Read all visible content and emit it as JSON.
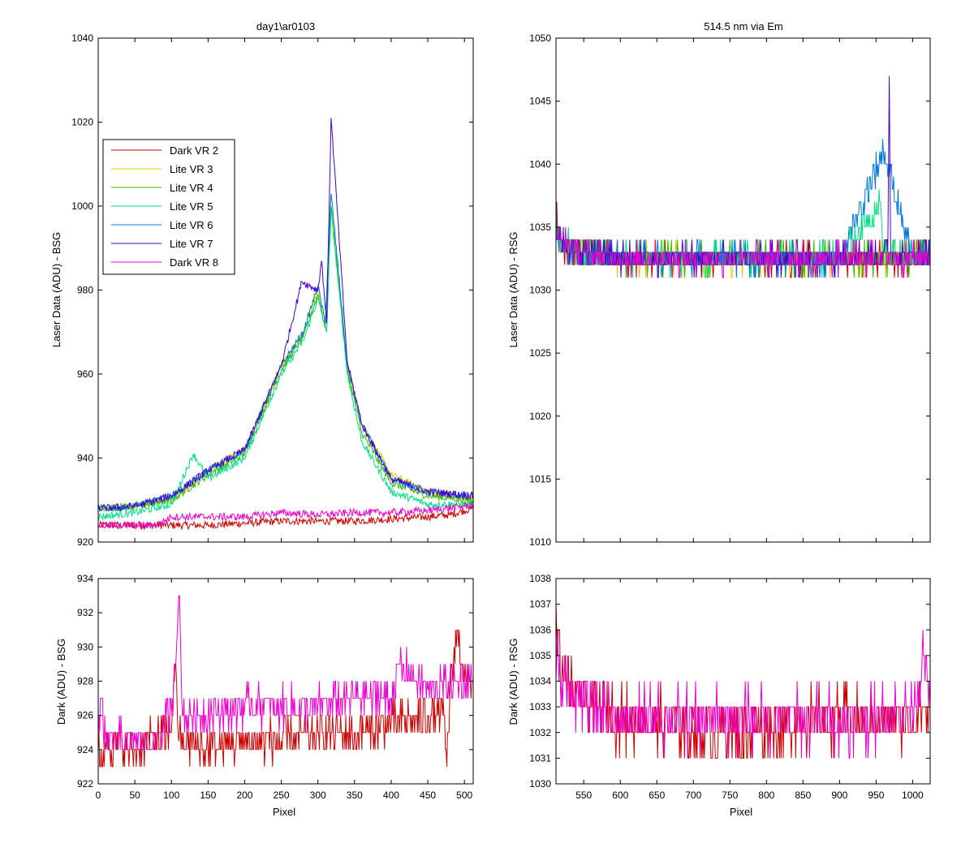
{
  "chart_data": [
    {
      "id": "top-left",
      "type": "line",
      "title": "day1\\ar0103",
      "xlabel": "",
      "ylabel": "Laser Data (ADU) - BSG",
      "xlim": [
        0,
        512
      ],
      "ylim": [
        920,
        1040
      ],
      "xticks": [],
      "xtick_labels": [],
      "yticks": [
        920,
        940,
        960,
        980,
        1000,
        1020,
        1040
      ],
      "ytick_labels": [
        "920",
        "940",
        "960",
        "980",
        "1000",
        "1020",
        "1040"
      ],
      "legend": {
        "placement": "upper-left",
        "entries": [
          "Dark VR 2",
          "Lite VR 3",
          "Lite VR 4",
          "Lite VR 5",
          "Lite VR 6",
          "Lite VR 7",
          "Dark VR 8"
        ]
      },
      "series": [
        {
          "name": "Dark VR 2",
          "color": "#cc0000",
          "x": [
            0,
            50,
            100,
            150,
            200,
            250,
            300,
            350,
            400,
            450,
            480,
            500,
            512
          ],
          "y": [
            924,
            924,
            924,
            924,
            924.5,
            925,
            925,
            925,
            925.5,
            926,
            926.5,
            927.5,
            928
          ]
        },
        {
          "name": "Lite VR 3",
          "color": "#e6c800",
          "x": [
            0,
            50,
            100,
            150,
            200,
            250,
            280,
            300,
            310,
            318,
            340,
            360,
            400,
            450,
            512
          ],
          "y": [
            928,
            928.5,
            930,
            937,
            942,
            962,
            970,
            980,
            972,
            1000,
            962,
            948,
            936,
            932,
            930
          ]
        },
        {
          "name": "Lite VR 4",
          "color": "#33bb00",
          "x": [
            0,
            50,
            100,
            150,
            200,
            250,
            280,
            300,
            310,
            318,
            340,
            360,
            400,
            450,
            512
          ],
          "y": [
            928,
            928.5,
            930,
            936,
            941,
            961,
            969,
            979,
            971,
            1000,
            961,
            946,
            934,
            931,
            930
          ]
        },
        {
          "name": "Lite VR 5",
          "color": "#00dd88",
          "x": [
            0,
            50,
            100,
            130,
            150,
            200,
            250,
            280,
            300,
            312,
            318,
            340,
            360,
            400,
            450,
            512
          ],
          "y": [
            926,
            927,
            929,
            941,
            935,
            940,
            960,
            968,
            978,
            970,
            999,
            960,
            944,
            932,
            929,
            929
          ]
        },
        {
          "name": "Lite VR 6",
          "color": "#0077dd",
          "x": [
            0,
            50,
            100,
            150,
            200,
            250,
            280,
            300,
            310,
            318,
            340,
            360,
            400,
            450,
            512
          ],
          "y": [
            928,
            928.5,
            931,
            937,
            942,
            962,
            970,
            981,
            972,
            1003,
            962,
            948,
            935,
            932,
            931
          ]
        },
        {
          "name": "Lite VR 7",
          "color": "#4400cc",
          "x": [
            0,
            50,
            100,
            150,
            200,
            250,
            278,
            300,
            305,
            312,
            318,
            340,
            360,
            400,
            450,
            512
          ],
          "y": [
            928,
            928.5,
            931,
            937,
            942,
            962,
            982,
            980,
            987,
            972,
            1021,
            963,
            948,
            935,
            932,
            931
          ]
        },
        {
          "name": "Dark VR 8",
          "color": "#ee00cc",
          "x": [
            0,
            50,
            80,
            100,
            150,
            200,
            250,
            300,
            350,
            400,
            450,
            500,
            512
          ],
          "y": [
            924,
            924,
            924,
            926,
            926,
            926,
            927,
            926.5,
            927,
            927,
            927.5,
            928.5,
            929
          ]
        }
      ]
    },
    {
      "id": "top-right",
      "type": "line",
      "title": "514.5 nm via Em",
      "xlabel": "",
      "ylabel": "Laser Data (ADU) - RSG",
      "xlim": [
        512,
        1024
      ],
      "ylim": [
        1010,
        1050
      ],
      "xticks": [],
      "xtick_labels": [],
      "yticks": [
        1010,
        1015,
        1020,
        1025,
        1030,
        1035,
        1040,
        1045,
        1050
      ],
      "ytick_labels": [
        "1010",
        "1015",
        "1020",
        "1025",
        "1030",
        "1035",
        "1040",
        "1045",
        "1050"
      ],
      "series": [
        {
          "name": "Dark VR 2",
          "color": "#cc0000",
          "x": [
            512,
            514,
            520,
            540,
            600,
            700,
            800,
            900,
            1000,
            1024
          ],
          "y": [
            1036,
            1035,
            1033,
            1033,
            1032.5,
            1032.5,
            1032.5,
            1032.5,
            1032.5,
            1033
          ]
        },
        {
          "name": "Lite VR 3",
          "color": "#e6c800",
          "x": [
            512,
            514,
            540,
            600,
            700,
            800,
            900,
            1000,
            1024
          ],
          "y": [
            1035,
            1034,
            1033,
            1032.5,
            1032.5,
            1032.5,
            1032.5,
            1032.5,
            1033
          ]
        },
        {
          "name": "Lite VR 4",
          "color": "#33bb00",
          "x": [
            512,
            514,
            540,
            600,
            700,
            800,
            900,
            1000,
            1024
          ],
          "y": [
            1035,
            1034,
            1033,
            1032.5,
            1032.5,
            1032.5,
            1032.5,
            1032.5,
            1033
          ]
        },
        {
          "name": "Lite VR 5",
          "color": "#00dd88",
          "x": [
            512,
            514,
            540,
            600,
            700,
            800,
            900,
            955,
            960,
            1000,
            1024
          ],
          "y": [
            1035,
            1034,
            1033,
            1032.5,
            1032.5,
            1032.5,
            1032.5,
            1037,
            1033,
            1032.5,
            1033
          ]
        },
        {
          "name": "Lite VR 6",
          "color": "#0077dd",
          "x": [
            512,
            514,
            540,
            600,
            700,
            800,
            900,
            960,
            1000,
            1024
          ],
          "y": [
            1037,
            1034,
            1033,
            1032.5,
            1032.5,
            1032.5,
            1032.5,
            1041,
            1032.5,
            1033
          ]
        },
        {
          "name": "Lite VR 7",
          "color": "#4400cc",
          "x": [
            512,
            514,
            540,
            600,
            700,
            800,
            900,
            966,
            968,
            970,
            1000,
            1024
          ],
          "y": [
            1035,
            1034,
            1033,
            1032.5,
            1032.5,
            1032.5,
            1032.5,
            1033,
            1047,
            1033,
            1032.5,
            1033
          ]
        },
        {
          "name": "Dark VR 8",
          "color": "#ee00cc",
          "x": [
            512,
            514,
            540,
            600,
            700,
            800,
            900,
            1000,
            1024
          ],
          "y": [
            1035,
            1034,
            1033,
            1032.5,
            1032.5,
            1032.5,
            1032.5,
            1032.5,
            1033
          ]
        }
      ]
    },
    {
      "id": "bottom-left",
      "type": "line",
      "title": "",
      "xlabel": "Pixel",
      "ylabel": "Dark (ADU) - BSG",
      "xlim": [
        0,
        512
      ],
      "ylim": [
        922,
        934
      ],
      "xticks": [
        0,
        50,
        100,
        150,
        200,
        250,
        300,
        350,
        400,
        450,
        500
      ],
      "xtick_labels": [
        "0",
        "50",
        "100",
        "150",
        "200",
        "250",
        "300",
        "350",
        "400",
        "450",
        "500"
      ],
      "yticks": [
        922,
        924,
        926,
        928,
        930,
        932,
        934
      ],
      "ytick_labels": [
        "922",
        "924",
        "926",
        "928",
        "930",
        "932",
        "934"
      ],
      "series": [
        {
          "name": "Dark VR 2",
          "color": "#cc0000",
          "x": [
            0,
            3,
            10,
            50,
            100,
            105,
            110,
            150,
            200,
            250,
            300,
            350,
            400,
            450,
            470,
            476,
            480,
            490,
            500,
            512
          ],
          "y": [
            924,
            923,
            924.5,
            924,
            925,
            929,
            924.5,
            924,
            924.5,
            924.5,
            925,
            925,
            925.5,
            926,
            926,
            923,
            927,
            931,
            928,
            928
          ]
        },
        {
          "name": "Dark VR 8",
          "color": "#ee00cc",
          "x": [
            0,
            3,
            10,
            50,
            75,
            100,
            110,
            115,
            150,
            200,
            250,
            300,
            350,
            400,
            410,
            450,
            500,
            512
          ],
          "y": [
            924.5,
            927,
            924.5,
            924.5,
            924.5,
            926,
            933,
            926,
            926,
            926.5,
            926.5,
            926.5,
            927,
            927,
            929,
            927.5,
            928,
            928
          ]
        }
      ]
    },
    {
      "id": "bottom-right",
      "type": "line",
      "title": "",
      "xlabel": "Pixel",
      "ylabel": "Dark (ADU) - RSG",
      "xlim": [
        512,
        1024
      ],
      "ylim": [
        1030,
        1038
      ],
      "xticks": [
        550,
        600,
        650,
        700,
        750,
        800,
        850,
        900,
        950,
        1000
      ],
      "xtick_labels": [
        "550",
        "600",
        "650",
        "700",
        "750",
        "800",
        "850",
        "900",
        "950",
        "1000"
      ],
      "yticks": [
        1030,
        1031,
        1032,
        1033,
        1034,
        1035,
        1036,
        1037,
        1038
      ],
      "ytick_labels": [
        "1030",
        "1031",
        "1032",
        "1033",
        "1034",
        "1035",
        "1036",
        "1037",
        "1038"
      ],
      "series": [
        {
          "name": "Dark VR 2",
          "color": "#cc0000",
          "x": [
            512,
            513,
            520,
            540,
            560,
            600,
            650,
            700,
            750,
            800,
            850,
            900,
            950,
            1000,
            1020,
            1024
          ],
          "y": [
            1037,
            1036,
            1034,
            1033.5,
            1033,
            1032.5,
            1032.5,
            1032,
            1032,
            1032,
            1032.5,
            1032.5,
            1032.5,
            1032.5,
            1033,
            1033
          ]
        },
        {
          "name": "Dark VR 8",
          "color": "#ee00cc",
          "x": [
            512,
            513,
            520,
            540,
            560,
            600,
            650,
            700,
            750,
            800,
            850,
            900,
            950,
            1000,
            1015,
            1024
          ],
          "y": [
            1034,
            1035,
            1034,
            1033.5,
            1033,
            1032.5,
            1032.5,
            1032.5,
            1032.5,
            1032.5,
            1032.5,
            1032.5,
            1032.5,
            1033,
            1035,
            1033.5
          ]
        }
      ]
    }
  ]
}
